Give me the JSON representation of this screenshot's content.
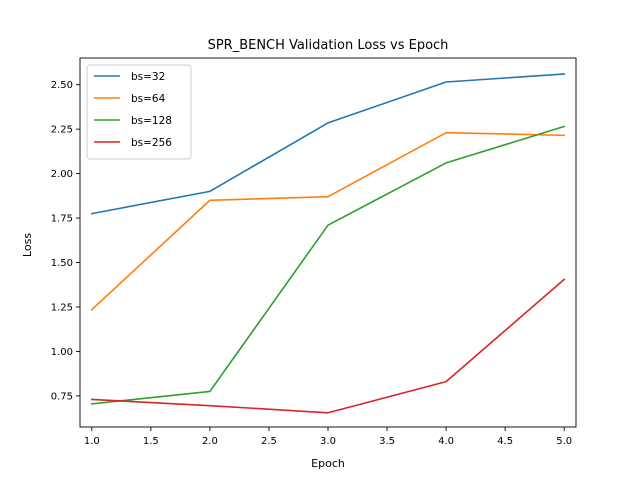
{
  "chart_data": {
    "type": "line",
    "title": "SPR_BENCH Validation Loss vs Epoch",
    "xlabel": "Epoch",
    "ylabel": "Loss",
    "xlim": [
      0.9,
      5.1
    ],
    "ylim": [
      0.575,
      2.65
    ],
    "xticks": [
      "1.0",
      "1.5",
      "2.0",
      "2.5",
      "3.0",
      "3.5",
      "4.0",
      "4.5",
      "5.0"
    ],
    "yticks": [
      "0.75",
      "1.00",
      "1.25",
      "1.50",
      "1.75",
      "2.00",
      "2.25",
      "2.50"
    ],
    "grid": false,
    "legend_position": "top-left",
    "x": [
      1,
      2,
      3,
      4,
      5
    ],
    "series": [
      {
        "name": "bs=32",
        "color": "#1f77b4",
        "values": [
          1.775,
          1.9,
          2.285,
          2.515,
          2.56
        ]
      },
      {
        "name": "bs=64",
        "color": "#ff7f0e",
        "values": [
          1.235,
          1.85,
          1.87,
          2.23,
          2.215
        ]
      },
      {
        "name": "bs=128",
        "color": "#2ca02c",
        "values": [
          0.705,
          0.775,
          1.71,
          2.06,
          2.265
        ]
      },
      {
        "name": "bs=256",
        "color": "#d62728",
        "values": [
          0.73,
          0.695,
          0.655,
          0.83,
          1.405
        ]
      }
    ]
  }
}
